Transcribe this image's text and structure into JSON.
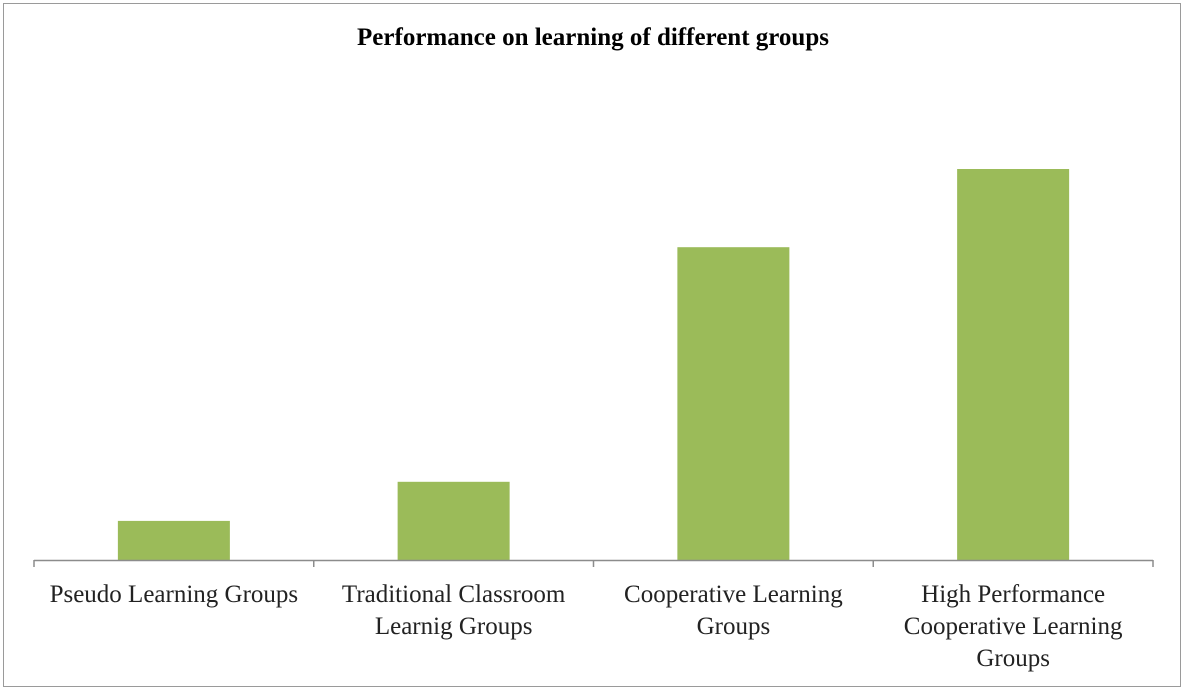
{
  "chart_data": {
    "type": "bar",
    "title": "Performance on learning of different groups",
    "xlabel": "",
    "ylabel": "",
    "categories": [
      [
        "Pseudo Learning Groups"
      ],
      [
        "Traditional Classroom",
        "Learnig Groups"
      ],
      [
        "Cooperative Learning",
        "Groups"
      ],
      [
        "High Performance",
        "Cooperative Learning",
        "Groups"
      ]
    ],
    "values": [
      10,
      20,
      80,
      100
    ],
    "ylim": [
      0,
      100
    ],
    "bar_color": "#9BBB59",
    "axis_color": "#8C8C8C",
    "grid": false,
    "legend": "none"
  }
}
